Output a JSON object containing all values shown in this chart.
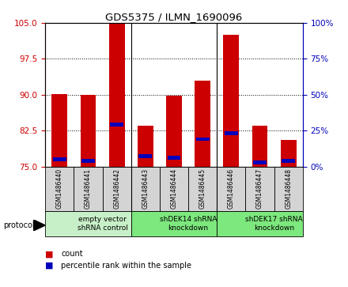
{
  "title": "GDS5375 / ILMN_1690096",
  "samples": [
    "GSM1486440",
    "GSM1486441",
    "GSM1486442",
    "GSM1486443",
    "GSM1486444",
    "GSM1486445",
    "GSM1486446",
    "GSM1486447",
    "GSM1486448"
  ],
  "count_values": [
    90.2,
    90.0,
    105.0,
    83.5,
    89.8,
    93.0,
    102.5,
    83.5,
    80.5
  ],
  "percentile_values": [
    5.0,
    4.0,
    29.0,
    7.0,
    6.0,
    19.0,
    23.0,
    3.0,
    4.0
  ],
  "bar_bottom": 75,
  "ylim_left": [
    75,
    105
  ],
  "ylim_right": [
    0,
    100
  ],
  "yticks_left": [
    75,
    82.5,
    90,
    97.5,
    105
  ],
  "yticks_right": [
    0,
    25,
    50,
    75,
    100
  ],
  "groups": [
    {
      "label": "empty vector\nshRNA control",
      "start": 0,
      "end": 3,
      "color": "#c8f0c8"
    },
    {
      "label": "shDEK14 shRNA\nknockdown",
      "start": 3,
      "end": 6,
      "color": "#7de87d"
    },
    {
      "label": "shDEK17 shRNA\nknockdown",
      "start": 6,
      "end": 9,
      "color": "#7de87d"
    }
  ],
  "protocol_label": "protocol",
  "bar_color_red": "#cc0000",
  "bar_color_blue": "#0000bb",
  "bar_width": 0.55,
  "grid_color": "black",
  "left_tick_color": "#cc0000",
  "right_tick_color": "#0000bb",
  "background_label": "#d4d4d4",
  "sample_box_color": "#d4d4d4"
}
